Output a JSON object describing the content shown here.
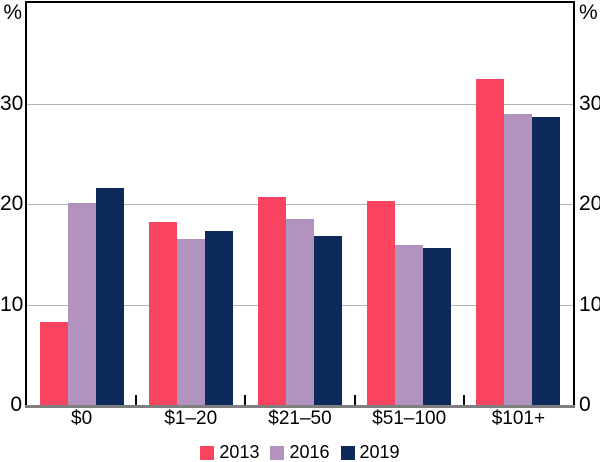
{
  "chart_data": {
    "type": "bar",
    "title": "",
    "unit": "%",
    "categories": [
      "$0",
      "$1–20",
      "$21–50",
      "$51–100",
      "$101+"
    ],
    "series": [
      {
        "name": "2013",
        "color": "#FA445F",
        "values": [
          8.3,
          18.2,
          20.7,
          20.3,
          32.4
        ]
      },
      {
        "name": "2016",
        "color": "#B292BF",
        "values": [
          20.1,
          16.5,
          18.5,
          15.9,
          29.0
        ]
      },
      {
        "name": "2019",
        "color": "#0D2A5A",
        "values": [
          21.6,
          17.3,
          16.8,
          15.6,
          28.7
        ]
      }
    ],
    "yticks": [
      0,
      10,
      20,
      30
    ],
    "ylim": [
      0,
      40
    ],
    "grid": true,
    "grid_color": "#b3b3b3",
    "axis_frame_color": "#000000",
    "baseline_color": "#7f7f7f",
    "legend_position": "bottom"
  }
}
